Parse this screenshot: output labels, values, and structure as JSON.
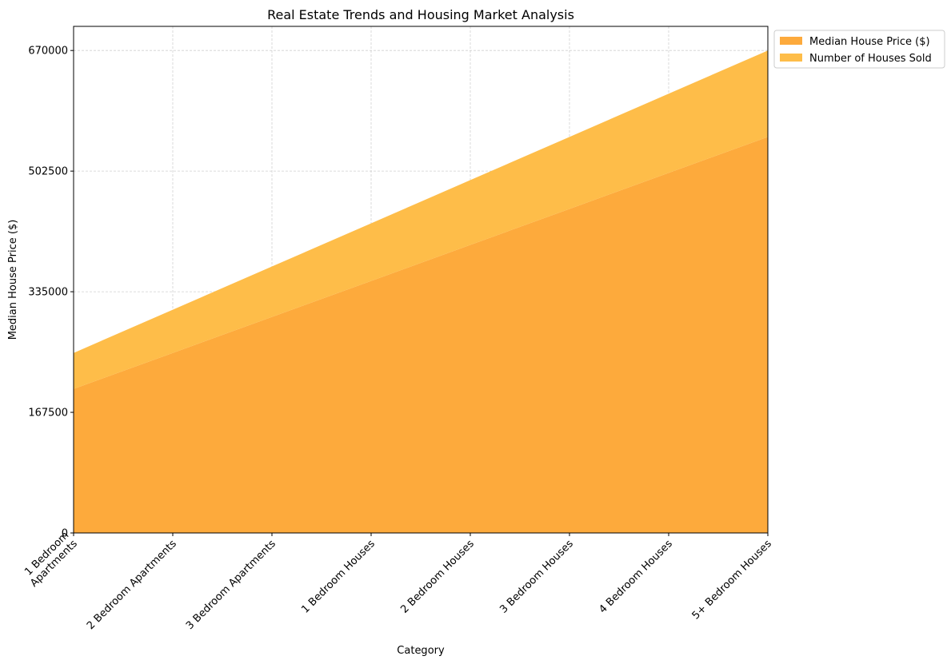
{
  "chart_data": {
    "type": "area",
    "stacked": true,
    "title": "Real Estate Trends and Housing Market Analysis",
    "xlabel": "Category",
    "ylabel": "Median House Price ($)",
    "categories": [
      "1 Bedroom\nApartments",
      "2 Bedroom Apartments",
      "3 Bedroom Apartments",
      "1 Bedroom Houses",
      "2 Bedroom Houses",
      "3 Bedroom Houses",
      "4 Bedroom Houses",
      "5+ Bedroom Houses"
    ],
    "series": [
      {
        "name": "Median House Price ($)",
        "color": "#FDAA3C",
        "values": [
          200000,
          250000,
          300000,
          350000,
          400000,
          450000,
          500000,
          550000
        ]
      },
      {
        "name": "Number of Houses Sold",
        "color": "#FEBD49",
        "values": [
          50000,
          60000,
          70000,
          80000,
          90000,
          100000,
          110000,
          120000
        ]
      }
    ],
    "ylim": [
      0,
      703500
    ],
    "yticks": [
      0,
      167500,
      335000,
      502500,
      670000
    ],
    "grid": true,
    "legend_position": "outside-top-right"
  }
}
